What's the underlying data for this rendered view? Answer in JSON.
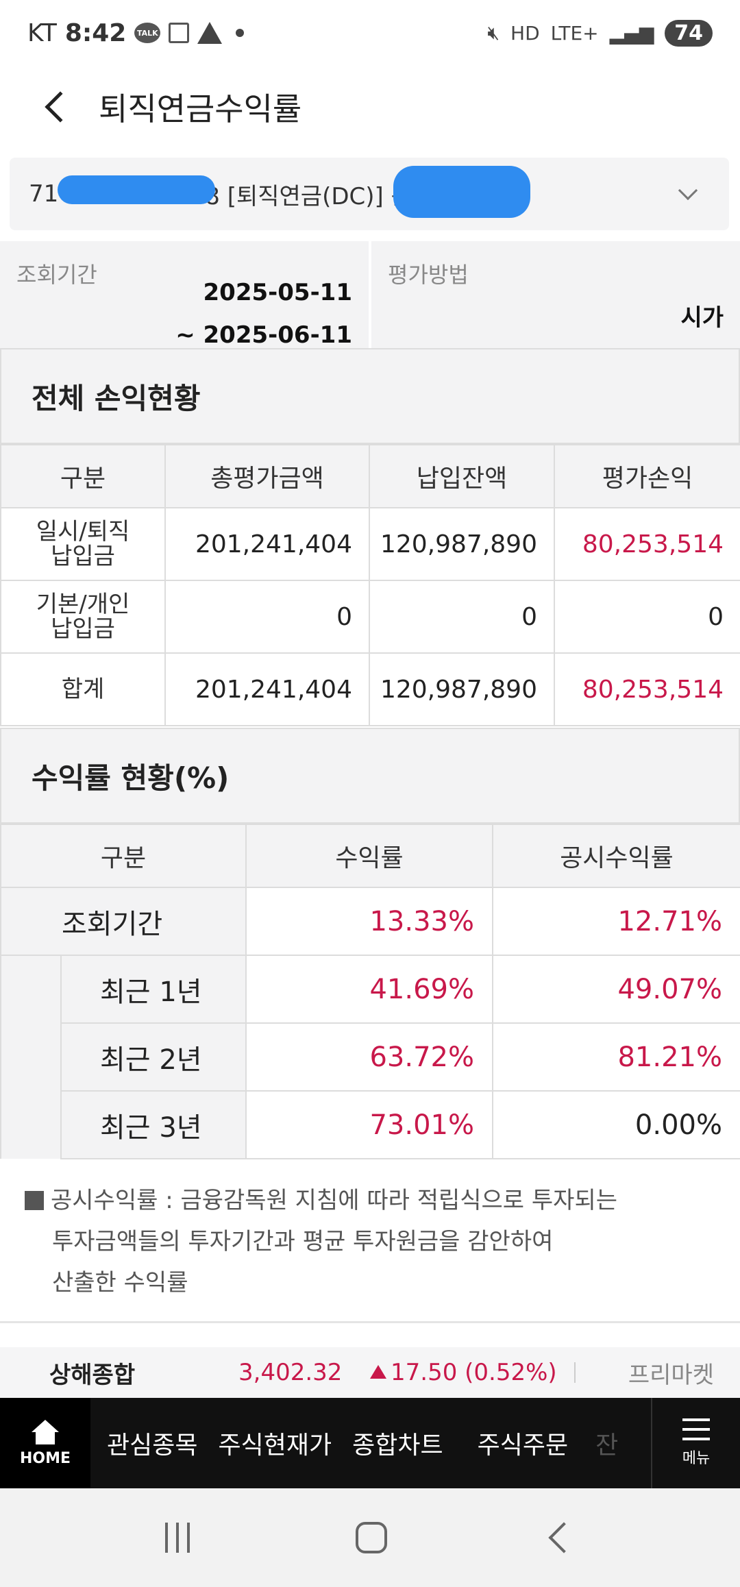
{
  "status_bar": {
    "carrier": "KT",
    "time": "8:42",
    "talk_badge": "TALK",
    "network": "LTE+",
    "hd": "HD",
    "battery": "74"
  },
  "header": {
    "title": "퇴직연금수익률"
  },
  "account": {
    "prefix": "71",
    "suffix": "8 [퇴직연금(DC)] 윤"
  },
  "period": {
    "label": "조회기간",
    "start": "2025-05-11",
    "end": "~ 2025-06-11",
    "method_label": "평가방법",
    "method_value": "시가"
  },
  "profit_section": {
    "title": "전체 손익현황",
    "headers": [
      "구분",
      "총평가금액",
      "납입잔액",
      "평가손익"
    ],
    "rows": [
      {
        "label_line1": "일시/퇴직",
        "label_line2": "납입금",
        "total": "201,241,404",
        "paid": "120,987,890",
        "gain": "80,253,514"
      },
      {
        "label_line1": "기본/개인",
        "label_line2": "납입금",
        "total": "0",
        "paid": "0",
        "gain": "0"
      },
      {
        "label_line1": "합계",
        "label_line2": "",
        "total": "201,241,404",
        "paid": "120,987,890",
        "gain": "80,253,514"
      }
    ]
  },
  "return_section": {
    "title": "수익률 현황(%)",
    "headers": [
      "구분",
      "수익률",
      "공시수익률"
    ],
    "rows": [
      {
        "label": "조회기간",
        "rate": "13.33%",
        "disclosed": "12.71%"
      },
      {
        "label": "최근 1년",
        "rate": "41.69%",
        "disclosed": "49.07%"
      },
      {
        "label": "최근 2년",
        "rate": "63.72%",
        "disclosed": "81.21%"
      },
      {
        "label": "최근 3년",
        "rate": "73.01%",
        "disclosed": "0.00%"
      }
    ]
  },
  "note": {
    "line1": "공시수익률 : 금융감독원 지침에 따라 적립식으로 투자되는",
    "line2": "투자금액들의 투자기간과 평균 투자원금을 감안하여",
    "line3": "산출한 수익률"
  },
  "ticker": {
    "name": "상해종합",
    "price": "3,402.32",
    "change": "17.50 (0.52%)",
    "premarket": "프리마켓"
  },
  "bottom_nav": {
    "home": "HOME",
    "items": [
      "관심종목",
      "주식현재가",
      "종합차트",
      "주식주문",
      "잔"
    ],
    "menu": "메뉴"
  },
  "colors": {
    "positive": "#c8184a",
    "redaction": "#2f8cf0"
  }
}
